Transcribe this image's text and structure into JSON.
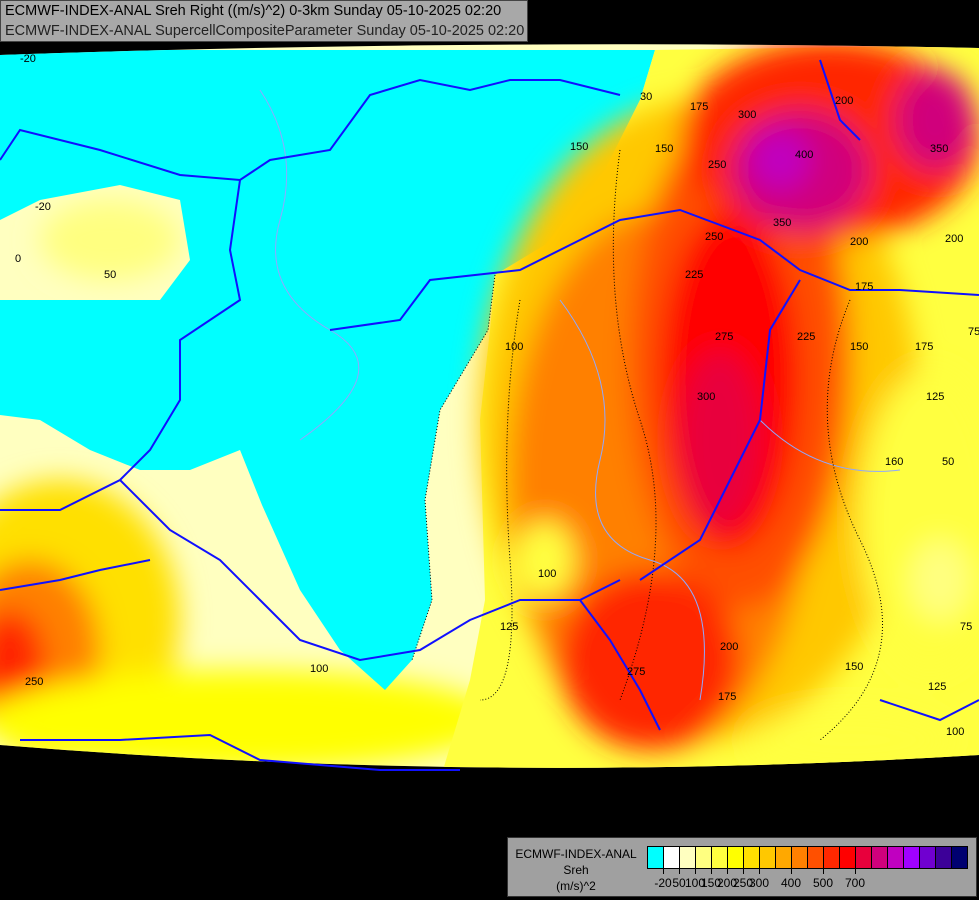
{
  "header": {
    "line1": "ECMWF-INDEX-ANAL Sreh Right ((m/s)^2) 0-3km Sunday 05-10-2025 02:20",
    "line2": "ECMWF-INDEX-ANAL SupercellCompositeParameter Sunday 05-10-2025 02:20"
  },
  "legend": {
    "model": "ECMWF-INDEX-ANAL",
    "variable": "Sreh",
    "unit": "(m/s)^2",
    "colors": [
      "#00ffff",
      "#ffffff",
      "#ffffc0",
      "#ffff80",
      "#ffff40",
      "#ffff00",
      "#ffe000",
      "#ffc800",
      "#ffa800",
      "#ff8000",
      "#ff5000",
      "#ff2800",
      "#ff0000",
      "#e8003c",
      "#d0007c",
      "#c000c0",
      "#a000ff",
      "#7000d0",
      "#3c0098",
      "#000070"
    ],
    "labels": [
      "-20",
      "50",
      "100",
      "150",
      "200",
      "250",
      "300",
      "400",
      "500",
      "700"
    ]
  },
  "contour_labels": [
    "-20",
    "-20",
    "50",
    "0",
    "30",
    "175",
    "300",
    "250",
    "400",
    "350",
    "150",
    "250",
    "200",
    "200",
    "225",
    "275",
    "300",
    "350",
    "225",
    "175",
    "150",
    "100",
    "75",
    "125",
    "160",
    "50",
    "75",
    "150",
    "175",
    "200",
    "275",
    "125",
    "100",
    "125",
    "100",
    "150",
    "175",
    "100",
    "200",
    "250"
  ],
  "colors": {
    "border": "#1010ff",
    "river": "#8fa8ff",
    "background": "#000000"
  }
}
